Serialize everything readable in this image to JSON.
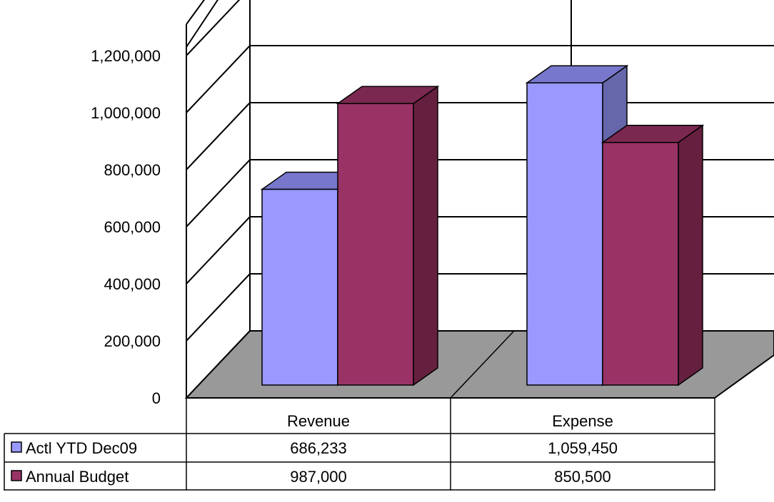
{
  "chart_data": {
    "type": "bar",
    "style": "3d-clustered-column",
    "categories": [
      "Revenue",
      "Expense"
    ],
    "series": [
      {
        "name": "Actl YTD Dec09",
        "values": [
          686233,
          1059450
        ],
        "value_labels": [
          "686,233",
          "1,059,450"
        ],
        "color": "#9999ff",
        "side_color": "#6666aa",
        "top_color": "#7777cc"
      },
      {
        "name": "Annual Budget",
        "values": [
          987000,
          850500
        ],
        "value_labels": [
          "987,000",
          "850,500"
        ],
        "color": "#993366",
        "side_color": "#66203f",
        "top_color": "#7a2850"
      }
    ],
    "y_ticks": [
      0,
      200000,
      400000,
      600000,
      800000,
      1000000,
      1200000
    ],
    "y_tick_labels": [
      "0",
      "200,000",
      "400,000",
      "600,000",
      "800,000",
      "1,000,000",
      "1,200,000"
    ],
    "ylim": [
      0,
      1200000
    ],
    "grid": true,
    "floor_color": "#999999",
    "legend": "data-table-below"
  }
}
